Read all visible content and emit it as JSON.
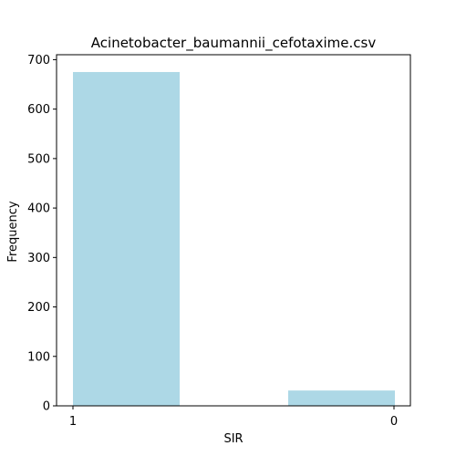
{
  "chart_data": {
    "type": "bar",
    "title": "Acinetobacter_baumannii_cefotaxime.csv",
    "xlabel": "SIR",
    "ylabel": "Frequency",
    "categories": [
      "1",
      "0"
    ],
    "x_ticks": [
      "1",
      "0"
    ],
    "values": [
      675,
      31
    ],
    "ylim": [
      0,
      710
    ],
    "y_ticks": [
      0,
      100,
      200,
      300,
      400,
      500,
      600,
      700
    ],
    "bar_color": "#add8e6",
    "grid": false,
    "legend": "none"
  }
}
